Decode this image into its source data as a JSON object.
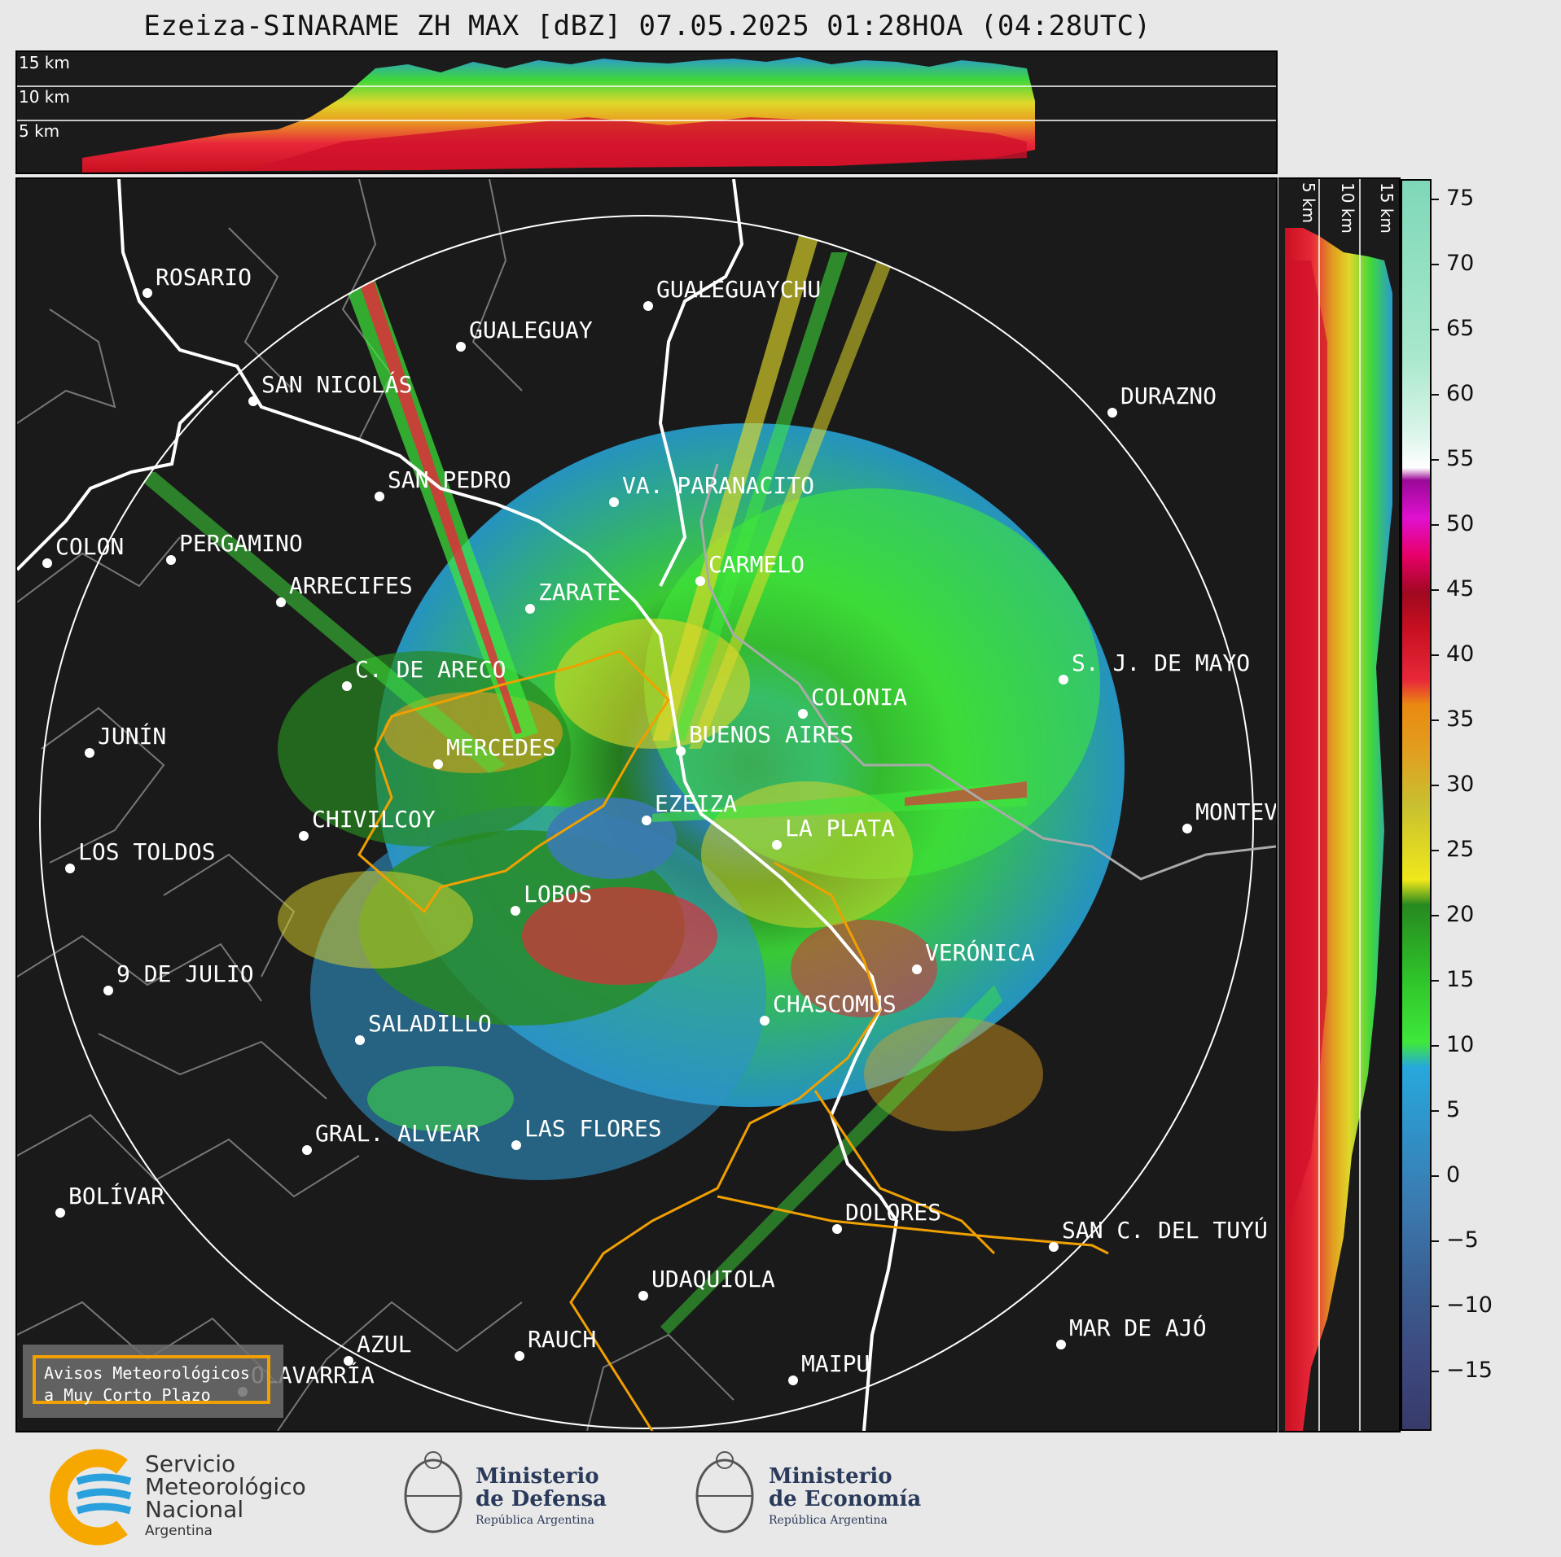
{
  "title": "Ezeiza-SINARAME ZH MAX [dBZ] 07.05.2025 01:28HOA (04:28UTC)",
  "top_section": {
    "altitude_labels": [
      "15 km",
      "10 km",
      "5 km"
    ]
  },
  "right_section": {
    "altitude_labels": [
      "5 km",
      "10 km",
      "15 km"
    ]
  },
  "colorbar": {
    "ticks": [
      "75",
      "70",
      "65",
      "60",
      "55",
      "50",
      "45",
      "40",
      "35",
      "30",
      "25",
      "20",
      "15",
      "10",
      "5",
      "0",
      "−5",
      "−10",
      "−15"
    ],
    "min": -20,
    "max": 77
  },
  "map": {
    "cities": [
      {
        "id": "rosario",
        "label": "ROSARIO"
      },
      {
        "id": "gualeguaychu",
        "label": "GUALEGUAYCHU"
      },
      {
        "id": "gualeguay",
        "label": "GUALEGUAY"
      },
      {
        "id": "san-nicolas",
        "label": "SAN NICOLÁS"
      },
      {
        "id": "durazno",
        "label": "DURAZNO"
      },
      {
        "id": "san-pedro",
        "label": "SAN PEDRO"
      },
      {
        "id": "va-paranacito",
        "label": "VA. PARANACITO"
      },
      {
        "id": "colon",
        "label": "COLON"
      },
      {
        "id": "pergamino",
        "label": "PERGAMINO"
      },
      {
        "id": "carmelo",
        "label": "CARMELO"
      },
      {
        "id": "arrecifes",
        "label": "ARRECIFES"
      },
      {
        "id": "zarate",
        "label": "ZARATE"
      },
      {
        "id": "sj-de-mayo",
        "label": "S. J. DE MAYO"
      },
      {
        "id": "c-de-areco",
        "label": "C. DE ARECO"
      },
      {
        "id": "colonia",
        "label": "COLONIA"
      },
      {
        "id": "junin",
        "label": "JUNÍN"
      },
      {
        "id": "buenos-aires",
        "label": "BUENOS AIRES"
      },
      {
        "id": "mercedes",
        "label": "MERCEDES"
      },
      {
        "id": "ezeiza",
        "label": "EZEIZA"
      },
      {
        "id": "montevideo",
        "label": "MONTEVIDEO"
      },
      {
        "id": "chivilcoy",
        "label": "CHIVILCOY"
      },
      {
        "id": "la-plata",
        "label": "LA PLATA"
      },
      {
        "id": "los-toldos",
        "label": "LOS TOLDOS"
      },
      {
        "id": "lobos",
        "label": "LOBOS"
      },
      {
        "id": "veronica",
        "label": "VERÓNICA"
      },
      {
        "id": "9-de-julio",
        "label": "9 DE JULIO"
      },
      {
        "id": "chascomus",
        "label": "CHASCOMUS"
      },
      {
        "id": "saladillo",
        "label": "SALADILLO"
      },
      {
        "id": "gral-alvear",
        "label": "GRAL. ALVEAR"
      },
      {
        "id": "las-flores",
        "label": "LAS FLORES"
      },
      {
        "id": "bolivar",
        "label": "BOLÍVAR"
      },
      {
        "id": "dolores",
        "label": "DOLORES"
      },
      {
        "id": "san-c-del-tuyu",
        "label": "SAN C. DEL TUYÚ"
      },
      {
        "id": "udaquiola",
        "label": "UDAQUIOLA"
      },
      {
        "id": "mar-de-ajo",
        "label": "MAR DE AJÓ"
      },
      {
        "id": "azul",
        "label": "AZUL"
      },
      {
        "id": "rauch",
        "label": "RAUCH"
      },
      {
        "id": "olavarria",
        "label": "OLAVARRÍA"
      },
      {
        "id": "maipu",
        "label": "MAIPU"
      }
    ],
    "legend": {
      "line1": "Avisos Meteorológicos",
      "line2": "a Muy Corto Plazo"
    }
  },
  "logos": {
    "smn": {
      "line1": "Servicio",
      "line2": "Meteorológico",
      "line3": "Nacional",
      "line4": "Argentina"
    },
    "defensa": {
      "line1": "Ministerio",
      "line2": "de Defensa",
      "line3": "República Argentina"
    },
    "economia": {
      "line1": "Ministerio",
      "line2": "de Economía",
      "line3": "República Argentina"
    }
  },
  "colors": {
    "background": "#1a1a1a",
    "range_ring": "#ffffff",
    "warning_outline": "#f0a000",
    "coast": "#ffffff",
    "admin_border": "#777777"
  }
}
